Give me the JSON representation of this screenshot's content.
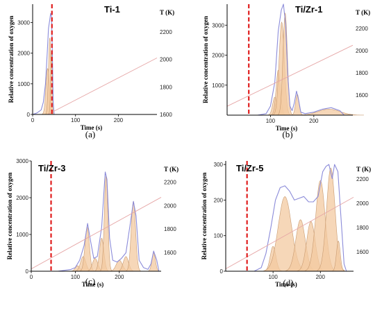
{
  "chart_data": [
    {
      "panel_label": "(a)",
      "title": "Ti-1",
      "type": "area",
      "xlabel": "Time  (s)",
      "ylabel": "Relative concentration of oxygen",
      "y2label": "T (K)",
      "xlim": [
        0,
        290
      ],
      "ylim": [
        0,
        3600
      ],
      "y2lim": [
        1600,
        2400
      ],
      "xticks": [
        0,
        100,
        200
      ],
      "yticks": [
        0,
        1000,
        2000,
        3000
      ],
      "y2ticks": [
        1600,
        1800,
        2000,
        2200
      ],
      "dashed_line_x": 45,
      "temperature_line": {
        "x": [
          35,
          290
        ],
        "T": [
          1600,
          2010
        ]
      },
      "envelope": {
        "x": [
          0,
          10,
          20,
          25,
          30,
          34,
          37,
          40,
          42,
          44,
          46,
          48,
          50
        ],
        "y": [
          0,
          50,
          150,
          400,
          1000,
          2000,
          2800,
          3100,
          3300,
          3200,
          2000,
          400,
          0
        ]
      },
      "peaks": [
        {
          "center": 35,
          "height": 1500,
          "width": 4
        },
        {
          "center": 40,
          "height": 2500,
          "width": 3
        },
        {
          "center": 44,
          "height": 2000,
          "width": 2
        }
      ]
    },
    {
      "panel_label": "(b)",
      "title": "Ti/Zr-1",
      "type": "area",
      "xlabel": "Time  (s)",
      "ylabel": "Relative concentration of oxygen",
      "y2label": "T (K)",
      "xlim": [
        0,
        290
      ],
      "ylim": [
        0,
        3700
      ],
      "y2lim": [
        1420,
        2420
      ],
      "xticks": [
        100,
        200
      ],
      "yticks": [
        1000,
        2000,
        3000
      ],
      "y2ticks": [
        1600,
        1800,
        2000,
        2200
      ],
      "dashed_line_x": 50,
      "temperature_line": {
        "x": [
          0,
          290
        ],
        "T": [
          1500,
          2050
        ]
      },
      "envelope": {
        "x": [
          70,
          90,
          100,
          110,
          118,
          125,
          130,
          135,
          140,
          145,
          150,
          155,
          160,
          165,
          170,
          180,
          200,
          220,
          240,
          260,
          270
        ],
        "y": [
          0,
          50,
          300,
          1100,
          2800,
          3500,
          3700,
          3000,
          1300,
          300,
          150,
          400,
          800,
          500,
          100,
          50,
          100,
          200,
          250,
          150,
          0
        ]
      },
      "peaks": [
        {
          "center": 110,
          "height": 600,
          "width": 5
        },
        {
          "center": 118,
          "height": 1500,
          "width": 5
        },
        {
          "center": 126,
          "height": 3100,
          "width": 6
        },
        {
          "center": 134,
          "height": 3400,
          "width": 5
        },
        {
          "center": 162,
          "height": 700,
          "width": 4
        },
        {
          "center": 235,
          "height": 200,
          "width": 25
        }
      ]
    },
    {
      "panel_label": "(c)",
      "title": "Ti/Zr-3",
      "type": "area",
      "xlabel": "Time  (s)",
      "ylabel": "Relative concentration of oxygen",
      "y2label": "T (K)",
      "xlim": [
        0,
        295
      ],
      "ylim": [
        0,
        3000
      ],
      "y2lim": [
        1440,
        2380
      ],
      "xticks": [
        0,
        100,
        200
      ],
      "yticks": [
        0,
        1000,
        2000,
        3000
      ],
      "y2ticks": [
        1600,
        1800,
        2000,
        2200
      ],
      "dashed_line_x": 45,
      "temperature_line": {
        "x": [
          0,
          295
        ],
        "T": [
          1460,
          2070
        ]
      },
      "envelope": {
        "x": [
          60,
          90,
          100,
          110,
          120,
          128,
          135,
          142,
          150,
          160,
          168,
          172,
          178,
          185,
          195,
          205,
          215,
          225,
          232,
          238,
          245,
          255,
          265,
          272,
          278,
          285,
          290
        ],
        "y": [
          0,
          50,
          100,
          300,
          700,
          1300,
          800,
          350,
          400,
          1200,
          2700,
          2500,
          900,
          300,
          250,
          350,
          500,
          1300,
          1900,
          1500,
          300,
          100,
          50,
          200,
          550,
          300,
          0
        ]
      },
      "peaks": [
        {
          "center": 105,
          "height": 150,
          "width": 5
        },
        {
          "center": 118,
          "height": 400,
          "width": 6
        },
        {
          "center": 127,
          "height": 1200,
          "width": 5
        },
        {
          "center": 145,
          "height": 350,
          "width": 6
        },
        {
          "center": 160,
          "height": 900,
          "width": 5
        },
        {
          "center": 170,
          "height": 2600,
          "width": 4
        },
        {
          "center": 200,
          "height": 300,
          "width": 7
        },
        {
          "center": 215,
          "height": 400,
          "width": 6
        },
        {
          "center": 232,
          "height": 1900,
          "width": 5
        },
        {
          "center": 278,
          "height": 500,
          "width": 4
        }
      ]
    },
    {
      "panel_label": "(d)",
      "title": "Ti/Zr-5",
      "type": "area",
      "xlabel": "Time  (s)",
      "ylabel": "Relative concentration of oxygen",
      "y2label": "T (K)",
      "xlim": [
        0,
        270
      ],
      "ylim": [
        0,
        310
      ],
      "y2lim": [
        1440,
        2350
      ],
      "xticks": [
        100,
        200
      ],
      "yticks": [
        0,
        100,
        200,
        300
      ],
      "y2ticks": [
        1600,
        1800,
        2000,
        2200
      ],
      "dashed_line_x": 45,
      "temperature_line": {
        "x": [
          0,
          270
        ],
        "T": [
          1460,
          2050
        ]
      },
      "envelope": {
        "x": [
          60,
          75,
          85,
          95,
          105,
          115,
          125,
          135,
          145,
          155,
          165,
          175,
          185,
          195,
          205,
          212,
          218,
          225,
          230,
          237,
          245,
          250,
          255
        ],
        "y": [
          0,
          10,
          50,
          120,
          200,
          235,
          240,
          225,
          200,
          205,
          210,
          195,
          195,
          210,
          280,
          295,
          300,
          260,
          300,
          280,
          120,
          20,
          0
        ]
      },
      "peaks": [
        {
          "center": 100,
          "height": 70,
          "width": 6
        },
        {
          "center": 125,
          "height": 210,
          "width": 14
        },
        {
          "center": 158,
          "height": 145,
          "width": 10
        },
        {
          "center": 180,
          "height": 140,
          "width": 9
        },
        {
          "center": 200,
          "height": 255,
          "width": 10
        },
        {
          "center": 222,
          "height": 290,
          "width": 9
        },
        {
          "center": 238,
          "height": 85,
          "width": 4
        }
      ]
    }
  ],
  "colors": {
    "fill": "#f3c9a0",
    "fill_stroke": "#c89a70",
    "envelope": "#8b8bd9",
    "temperature": "#e6a6a6",
    "dashed": "#e01e1e",
    "axis": "#000000"
  }
}
